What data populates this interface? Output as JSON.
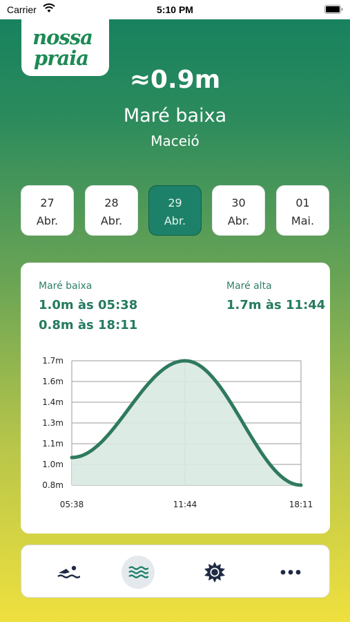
{
  "status_bar": {
    "carrier": "Carrier",
    "time": "5:10 PM"
  },
  "logo": {
    "line1": "nossa",
    "line2": "praia"
  },
  "header": {
    "height": "≈0.9m",
    "tide_label": "Maré baixa",
    "location": "Maceió"
  },
  "dates": [
    {
      "day": "27",
      "month": "Abr.",
      "selected": false
    },
    {
      "day": "28",
      "month": "Abr.",
      "selected": false
    },
    {
      "day": "29",
      "month": "Abr.",
      "selected": true
    },
    {
      "day": "30",
      "month": "Abr.",
      "selected": false
    },
    {
      "day": "01",
      "month": "Mai.",
      "selected": false
    }
  ],
  "tide_card": {
    "low_title": "Maré baixa",
    "low_values": [
      "1.0m às 05:38",
      "0.8m às 18:11"
    ],
    "high_title": "Maré alta",
    "high_values": [
      "1.7m às 11:44"
    ]
  },
  "chart_data": {
    "type": "area",
    "x": [
      "05:38",
      "11:44",
      "18:11"
    ],
    "y": [
      1.0,
      1.7,
      0.8
    ],
    "y_ticks": [
      "1.7m",
      "1.6m",
      "1.4m",
      "1.3m",
      "1.1m",
      "1.0m",
      "0.8m"
    ],
    "x_ticks": [
      "05:38",
      "11:44",
      "18:11"
    ],
    "grid": true,
    "line_color": "#2f7a5e",
    "fill_color": "#cfe3db"
  },
  "tab_bar": {
    "items": [
      {
        "icon": "swimmer-icon",
        "active": false
      },
      {
        "icon": "waves-icon",
        "active": true
      },
      {
        "icon": "sun-icon",
        "active": false
      },
      {
        "icon": "more-icon",
        "active": false
      }
    ]
  },
  "colors": {
    "accent": "#1c8168",
    "text_green": "#247a60"
  }
}
